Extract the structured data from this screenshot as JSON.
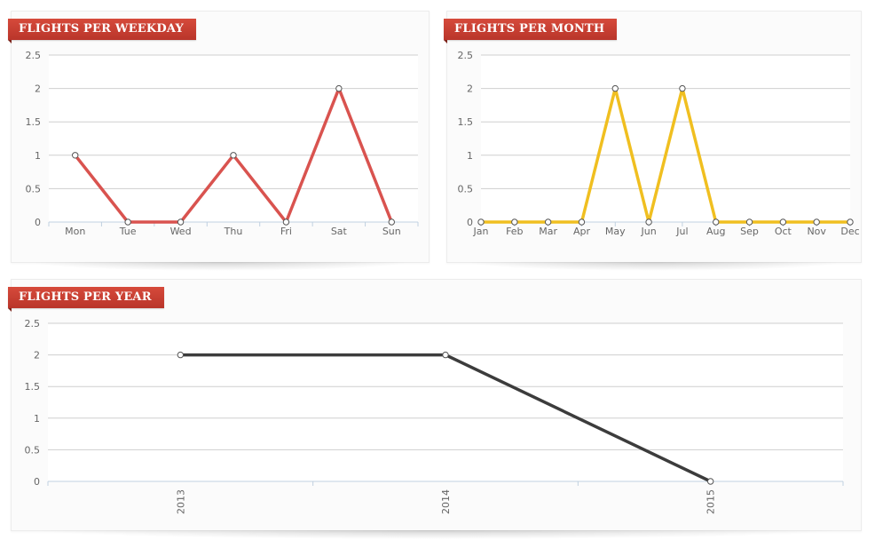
{
  "panels": {
    "weekday": {
      "title": "FLIGHTS PER WEEKDAY"
    },
    "month": {
      "title": "FLIGHTS PER MONTH"
    },
    "year": {
      "title": "FLIGHTS PER YEAR"
    }
  },
  "chart_data": [
    {
      "id": "weekday",
      "type": "line",
      "title": "FLIGHTS PER WEEKDAY",
      "categories": [
        "Mon",
        "Tue",
        "Wed",
        "Thu",
        "Fri",
        "Sat",
        "Sun"
      ],
      "values": [
        1,
        0,
        0,
        1,
        0,
        2,
        0
      ],
      "yticks": [
        "0",
        "0.5",
        "1",
        "1.5",
        "2",
        "2.5"
      ],
      "ylim": [
        0,
        2.5
      ],
      "grid": true,
      "color": "#d9534f"
    },
    {
      "id": "month",
      "type": "line",
      "title": "FLIGHTS PER MONTH",
      "categories": [
        "Jan",
        "Feb",
        "Mar",
        "Apr",
        "May",
        "Jun",
        "Jul",
        "Aug",
        "Sep",
        "Oct",
        "Nov",
        "Dec"
      ],
      "values": [
        0,
        0,
        0,
        0,
        2,
        0,
        2,
        0,
        0,
        0,
        0,
        0
      ],
      "yticks": [
        "0",
        "0.5",
        "1",
        "1.5",
        "2",
        "2.5"
      ],
      "ylim": [
        0,
        2.5
      ],
      "grid": true,
      "color": "#f0bf20"
    },
    {
      "id": "year",
      "type": "line",
      "title": "FLIGHTS PER YEAR",
      "categories": [
        "2013",
        "2014",
        "2015"
      ],
      "values": [
        2,
        2,
        0
      ],
      "yticks": [
        "0",
        "0.5",
        "1",
        "1.5",
        "2",
        "2.5"
      ],
      "ylim": [
        0,
        2.5
      ],
      "grid": true,
      "color": "#3c3c3c",
      "rotated_labels": true
    }
  ]
}
